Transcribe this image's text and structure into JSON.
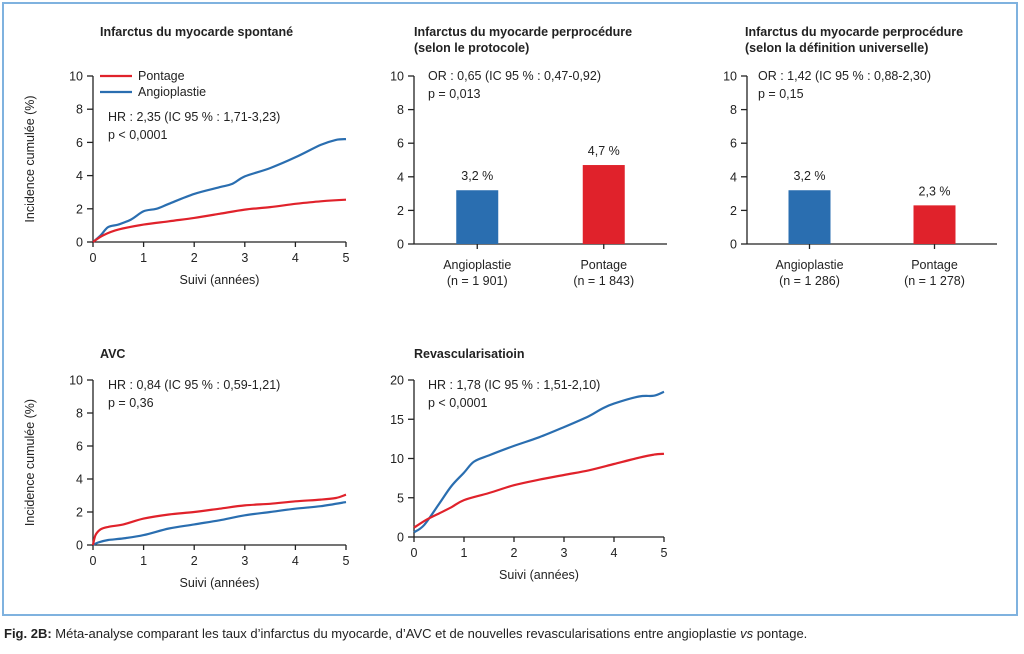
{
  "caption": {
    "prefix": "Fig. 2B:",
    "part1": " Méta-analyse comparant les taux d’infarctus du myocarde, d’AVC et de nouvelles revascularisations entre angioplastie ",
    "vs": "vs",
    "part2": " pontage."
  },
  "colors": {
    "angioplastie": "#2a6eb0",
    "pontage": "#e0222b",
    "axis": "#222222",
    "frame": "#7fb2df"
  },
  "shared": {
    "ylabel": "Incidence cumulée (%)",
    "xlabel": "Suivi (années)"
  },
  "chart_data": [
    {
      "id": "spontane",
      "type": "line",
      "title": "Infarctus du myocarde spontané",
      "xlabel": "Suivi (années)",
      "ylabel": "Incidence cumulée (%)",
      "xlim": [
        0,
        5
      ],
      "ylim": [
        0,
        10
      ],
      "xticks": [
        0,
        1,
        2,
        3,
        4,
        5
      ],
      "yticks": [
        0,
        2,
        4,
        6,
        8,
        10
      ],
      "legend": [
        "Pontage",
        "Angioplastie"
      ],
      "legend_position": "top-left",
      "annotations": [
        "HR : 2,35 (IC 95 % : 1,71-3,23)",
        "p < 0,0001"
      ],
      "series": [
        {
          "name": "Pontage",
          "color": "#e0222b",
          "x": [
            0,
            0.2,
            0.5,
            1,
            1.5,
            2,
            2.5,
            3,
            3.5,
            4,
            4.5,
            5
          ],
          "values": [
            0,
            0.4,
            0.75,
            1.05,
            1.25,
            1.45,
            1.7,
            1.95,
            2.1,
            2.3,
            2.45,
            2.55
          ]
        },
        {
          "name": "Angioplastie",
          "color": "#2a6eb0",
          "x": [
            0,
            0.15,
            0.3,
            0.5,
            0.75,
            1,
            1.25,
            1.5,
            2,
            2.5,
            2.75,
            3,
            3.5,
            4,
            4.5,
            4.8,
            5
          ],
          "values": [
            0,
            0.4,
            0.9,
            1.05,
            1.35,
            1.85,
            2.0,
            2.3,
            2.9,
            3.3,
            3.5,
            3.95,
            4.45,
            5.1,
            5.85,
            6.15,
            6.2
          ]
        }
      ]
    },
    {
      "id": "perprocedure-protocole",
      "type": "bar",
      "title": [
        "Infarctus du myocarde perprocédure",
        "(selon le protocole)"
      ],
      "ylim": [
        0,
        10
      ],
      "yticks": [
        0,
        2,
        4,
        6,
        8,
        10
      ],
      "annotations": [
        "OR : 0,65 (IC 95 % : 0,47-0,92)",
        "p = 0,013"
      ],
      "categories": [
        [
          "Angioplastie",
          "(n = 1 901)"
        ],
        [
          "Pontage",
          "(n = 1 843)"
        ]
      ],
      "values": [
        3.2,
        4.7
      ],
      "value_labels": [
        "3,2 %",
        "4,7 %"
      ],
      "bar_colors": [
        "#2a6eb0",
        "#e0222b"
      ]
    },
    {
      "id": "perprocedure-universelle",
      "type": "bar",
      "title": [
        "Infarctus du myocarde perprocédure",
        "(selon la définition universelle)"
      ],
      "ylim": [
        0,
        10
      ],
      "yticks": [
        0,
        2,
        4,
        6,
        8,
        10
      ],
      "annotations": [
        "OR : 1,42 (IC 95 % : 0,88-2,30)",
        "p = 0,15"
      ],
      "categories": [
        [
          "Angioplastie",
          "(n = 1 286)"
        ],
        [
          "Pontage",
          "(n = 1 278)"
        ]
      ],
      "values": [
        3.2,
        2.3
      ],
      "value_labels": [
        "3,2 %",
        "2,3 %"
      ],
      "bar_colors": [
        "#2a6eb0",
        "#e0222b"
      ]
    },
    {
      "id": "avc",
      "type": "line",
      "title": "AVC",
      "xlabel": "Suivi (années)",
      "ylabel": "Incidence cumulée (%)",
      "xlim": [
        0,
        5
      ],
      "ylim": [
        0,
        10
      ],
      "xticks": [
        0,
        1,
        2,
        3,
        4,
        5
      ],
      "yticks": [
        0,
        2,
        4,
        6,
        8,
        10
      ],
      "annotations": [
        "HR : 0,84 (IC 95 % : 0,59-1,21)",
        "p = 0,36"
      ],
      "series": [
        {
          "name": "Pontage",
          "color": "#e0222b",
          "x": [
            0,
            0.05,
            0.15,
            0.3,
            0.6,
            1,
            1.5,
            2,
            2.5,
            3,
            3.5,
            4,
            4.5,
            4.8,
            5
          ],
          "values": [
            0,
            0.6,
            0.95,
            1.1,
            1.25,
            1.6,
            1.85,
            2.0,
            2.2,
            2.4,
            2.5,
            2.65,
            2.75,
            2.85,
            3.05
          ]
        },
        {
          "name": "Angioplastie",
          "color": "#2a6eb0",
          "x": [
            0,
            0.1,
            0.3,
            0.6,
            1,
            1.5,
            2,
            2.5,
            3,
            3.5,
            4,
            4.5,
            5
          ],
          "values": [
            0,
            0.15,
            0.3,
            0.4,
            0.6,
            1.0,
            1.25,
            1.5,
            1.8,
            2.0,
            2.2,
            2.35,
            2.6
          ]
        }
      ]
    },
    {
      "id": "revascularisation",
      "type": "line",
      "title": "Revascularisatioin",
      "xlabel": "Suivi (années)",
      "xlim": [
        0,
        5
      ],
      "ylim": [
        0,
        20
      ],
      "xticks": [
        0,
        1,
        2,
        3,
        4,
        5
      ],
      "yticks": [
        0,
        5,
        10,
        15,
        20
      ],
      "annotations": [
        "HR : 1,78 (IC 95 % : 1,51-2,10)",
        "p < 0,0001"
      ],
      "series": [
        {
          "name": "Pontage",
          "color": "#e0222b",
          "x": [
            0,
            0.25,
            0.5,
            0.75,
            1,
            1.5,
            2,
            2.5,
            3,
            3.5,
            4,
            4.5,
            4.8,
            5
          ],
          "values": [
            1.2,
            2.2,
            3.0,
            3.8,
            4.7,
            5.6,
            6.6,
            7.3,
            7.9,
            8.5,
            9.3,
            10.1,
            10.5,
            10.6
          ]
        },
        {
          "name": "Angioplastie",
          "color": "#2a6eb0",
          "x": [
            0,
            0.2,
            0.5,
            0.75,
            1,
            1.2,
            1.5,
            2,
            2.5,
            3,
            3.5,
            3.75,
            4,
            4.5,
            4.8,
            5
          ],
          "values": [
            0.6,
            1.5,
            4.2,
            6.5,
            8.2,
            9.6,
            10.4,
            11.6,
            12.7,
            14.0,
            15.4,
            16.3,
            17.0,
            17.9,
            18.0,
            18.5
          ]
        }
      ]
    }
  ]
}
